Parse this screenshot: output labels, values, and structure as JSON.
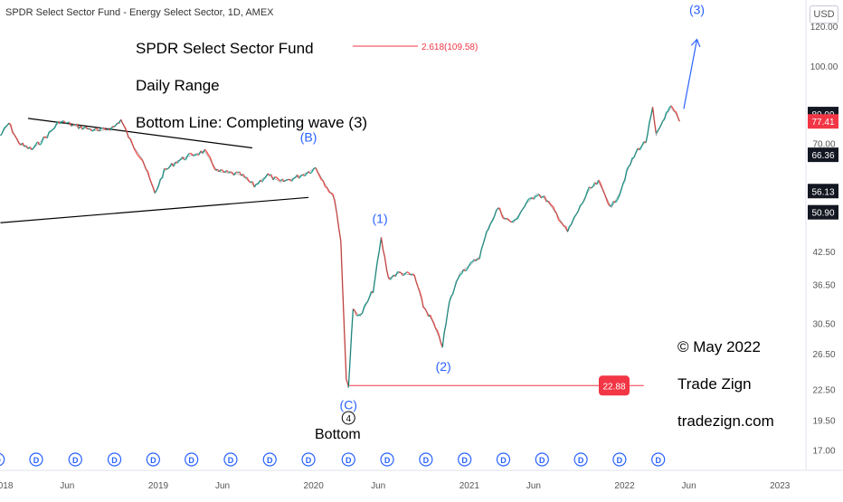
{
  "header": {
    "symbol_title": "SPDR Select Sector Fund - Energy Select Sector, 1D, AMEX"
  },
  "currency_button": {
    "label": "USD"
  },
  "annotations": {
    "line1": "SPDR Select Sector Fund",
    "line2": "Daily Range",
    "line3": "Bottom Line: Completing wave (3)",
    "copyright": "© May 2022",
    "brand": "Trade Zign",
    "site": "tradezign.com",
    "fib_label": "2.618(109.58)",
    "fib_price": 109.58,
    "support_label": "22.88",
    "support_price": 22.88,
    "bottom_label": "Bottom",
    "circle_label": "4"
  },
  "chart_data": {
    "type": "line",
    "title": "SPDR Select Sector Fund - Energy Select Sector, 1D, AMEX",
    "ylabel": "",
    "xlabel": "",
    "y_scale": "log",
    "ylim": [
      16,
      130
    ],
    "x_range": [
      "2017-12-25",
      "2023-03-01"
    ],
    "y_ticks": [
      120.0,
      100.0,
      80.0,
      70.0,
      56.13,
      42.5,
      36.5,
      30.5,
      26.5,
      22.5,
      19.5,
      17.0
    ],
    "x_ticks": [
      {
        "label": "2018",
        "date": "2018-01-01"
      },
      {
        "label": "Jun",
        "date": "2018-06-01"
      },
      {
        "label": "2019",
        "date": "2019-01-01"
      },
      {
        "label": "Jun",
        "date": "2019-06-01"
      },
      {
        "label": "2020",
        "date": "2020-01-01"
      },
      {
        "label": "Jun",
        "date": "2020-06-01"
      },
      {
        "label": "2021",
        "date": "2021-01-01"
      },
      {
        "label": "Jun",
        "date": "2021-06-01"
      },
      {
        "label": "2022",
        "date": "2022-01-01"
      },
      {
        "label": "Jun",
        "date": "2022-06-01"
      },
      {
        "label": "2023",
        "date": "2023-01-01"
      }
    ],
    "series": [
      {
        "color": "#3a3a3a",
        "points": [
          [
            "2017-12-26",
            72.5
          ],
          [
            "2018-01-15",
            76.8
          ],
          [
            "2018-02-05",
            70.5
          ],
          [
            "2018-02-20",
            69.0
          ],
          [
            "2018-03-10",
            68.0
          ],
          [
            "2018-04-15",
            72.5
          ],
          [
            "2018-05-15",
            77.5
          ],
          [
            "2018-06-15",
            76.0
          ],
          [
            "2018-07-15",
            75.0
          ],
          [
            "2018-08-15",
            74.0
          ],
          [
            "2018-09-20",
            75.5
          ],
          [
            "2018-10-05",
            78.0
          ],
          [
            "2018-11-01",
            69.5
          ],
          [
            "2018-11-25",
            65.0
          ],
          [
            "2018-12-24",
            55.5
          ],
          [
            "2019-01-15",
            61.5
          ],
          [
            "2019-02-15",
            64.5
          ],
          [
            "2019-03-15",
            66.0
          ],
          [
            "2019-04-20",
            67.5
          ],
          [
            "2019-05-20",
            61.5
          ],
          [
            "2019-06-15",
            61.0
          ],
          [
            "2019-07-15",
            60.5
          ],
          [
            "2019-08-15",
            57.5
          ],
          [
            "2019-09-15",
            60.5
          ],
          [
            "2019-10-15",
            58.5
          ],
          [
            "2019-11-15",
            59.5
          ],
          [
            "2019-12-15",
            61.0
          ],
          [
            "2020-01-06",
            62.5
          ],
          [
            "2020-01-28",
            58.0
          ],
          [
            "2020-02-20",
            54.0
          ],
          [
            "2020-03-05",
            44.5
          ],
          [
            "2020-03-18",
            23.5
          ],
          [
            "2020-03-23",
            22.88
          ],
          [
            "2020-04-03",
            32.5
          ],
          [
            "2020-04-20",
            31.5
          ],
          [
            "2020-05-20",
            35.5
          ],
          [
            "2020-06-08",
            45.0
          ],
          [
            "2020-06-25",
            37.5
          ],
          [
            "2020-07-20",
            38.5
          ],
          [
            "2020-08-25",
            38.0
          ],
          [
            "2020-09-15",
            33.0
          ],
          [
            "2020-10-05",
            31.0
          ],
          [
            "2020-10-30",
            27.5
          ],
          [
            "2020-11-15",
            33.5
          ],
          [
            "2020-12-10",
            38.5
          ],
          [
            "2021-01-05",
            40.0
          ],
          [
            "2021-01-25",
            41.5
          ],
          [
            "2021-02-15",
            47.5
          ],
          [
            "2021-03-10",
            52.0
          ],
          [
            "2021-03-25",
            49.5
          ],
          [
            "2021-04-15",
            48.5
          ],
          [
            "2021-05-15",
            53.0
          ],
          [
            "2021-06-10",
            55.5
          ],
          [
            "2021-07-01",
            54.0
          ],
          [
            "2021-07-25",
            50.5
          ],
          [
            "2021-08-20",
            46.5
          ],
          [
            "2021-09-10",
            50.5
          ],
          [
            "2021-10-10",
            56.5
          ],
          [
            "2021-11-01",
            58.5
          ],
          [
            "2021-12-01",
            52.0
          ],
          [
            "2021-12-20",
            55.5
          ],
          [
            "2022-01-10",
            62.5
          ],
          [
            "2022-02-01",
            68.0
          ],
          [
            "2022-02-20",
            70.5
          ],
          [
            "2022-03-08",
            82.0
          ],
          [
            "2022-03-16",
            72.5
          ],
          [
            "2022-04-05",
            79.0
          ],
          [
            "2022-04-20",
            82.5
          ],
          [
            "2022-05-02",
            80.09
          ],
          [
            "2022-05-10",
            77.41
          ]
        ]
      }
    ],
    "price_labels": [
      {
        "value": 80.09,
        "label": "80.09",
        "bg": "#131722",
        "fg": "#ffffff"
      },
      {
        "value": 77.41,
        "label": "77.41",
        "bg": "#f23645",
        "fg": "#ffffff"
      },
      {
        "value": 66.36,
        "label": "66.36",
        "bg": "#131722",
        "fg": "#ffffff"
      },
      {
        "value": 56.13,
        "label": "56.13",
        "bg": "#131722",
        "fg": "#ffffff"
      },
      {
        "value": 50.9,
        "label": "50.90",
        "bg": "#131722",
        "fg": "#ffffff"
      }
    ],
    "wave_labels": [
      {
        "label": "(B)",
        "date": "2019-12-20",
        "value": 70.5
      },
      {
        "label": "(1)",
        "date": "2020-06-05",
        "value": 48.5
      },
      {
        "label": "(2)",
        "date": "2020-11-01",
        "value": 24.5
      },
      {
        "label": "(C)",
        "date": "2020-03-23",
        "value": 20.5
      },
      {
        "label": "(3)",
        "date": "2022-06-20",
        "value": 127.0
      }
    ],
    "trendlines": [
      {
        "from": [
          "2018-03-01",
          78.5
        ],
        "to": [
          "2019-08-10",
          68.5
        ]
      },
      {
        "from": [
          "2017-12-26",
          48.5
        ],
        "to": [
          "2019-12-20",
          54.5
        ]
      },
      {
        "from": [
          "2020-03-23",
          22.88
        ],
        "to": [
          "2022-02-15",
          22.88
        ],
        "color": "#f23645"
      },
      {
        "from": [
          "2022-05-20",
          82.0
        ],
        "to": [
          "2022-06-20",
          113.0
        ],
        "color": "#2962ff",
        "arrow": true
      }
    ],
    "dividend_marks": [
      "2017-12-20",
      "2018-03-20",
      "2018-06-20",
      "2018-09-20",
      "2018-12-20",
      "2019-03-20",
      "2019-06-20",
      "2019-09-20",
      "2019-12-20",
      "2020-03-23",
      "2020-06-22",
      "2020-09-21",
      "2020-12-21",
      "2021-03-22",
      "2021-06-21",
      "2021-09-20",
      "2021-12-20",
      "2022-03-21"
    ],
    "grid": false
  }
}
